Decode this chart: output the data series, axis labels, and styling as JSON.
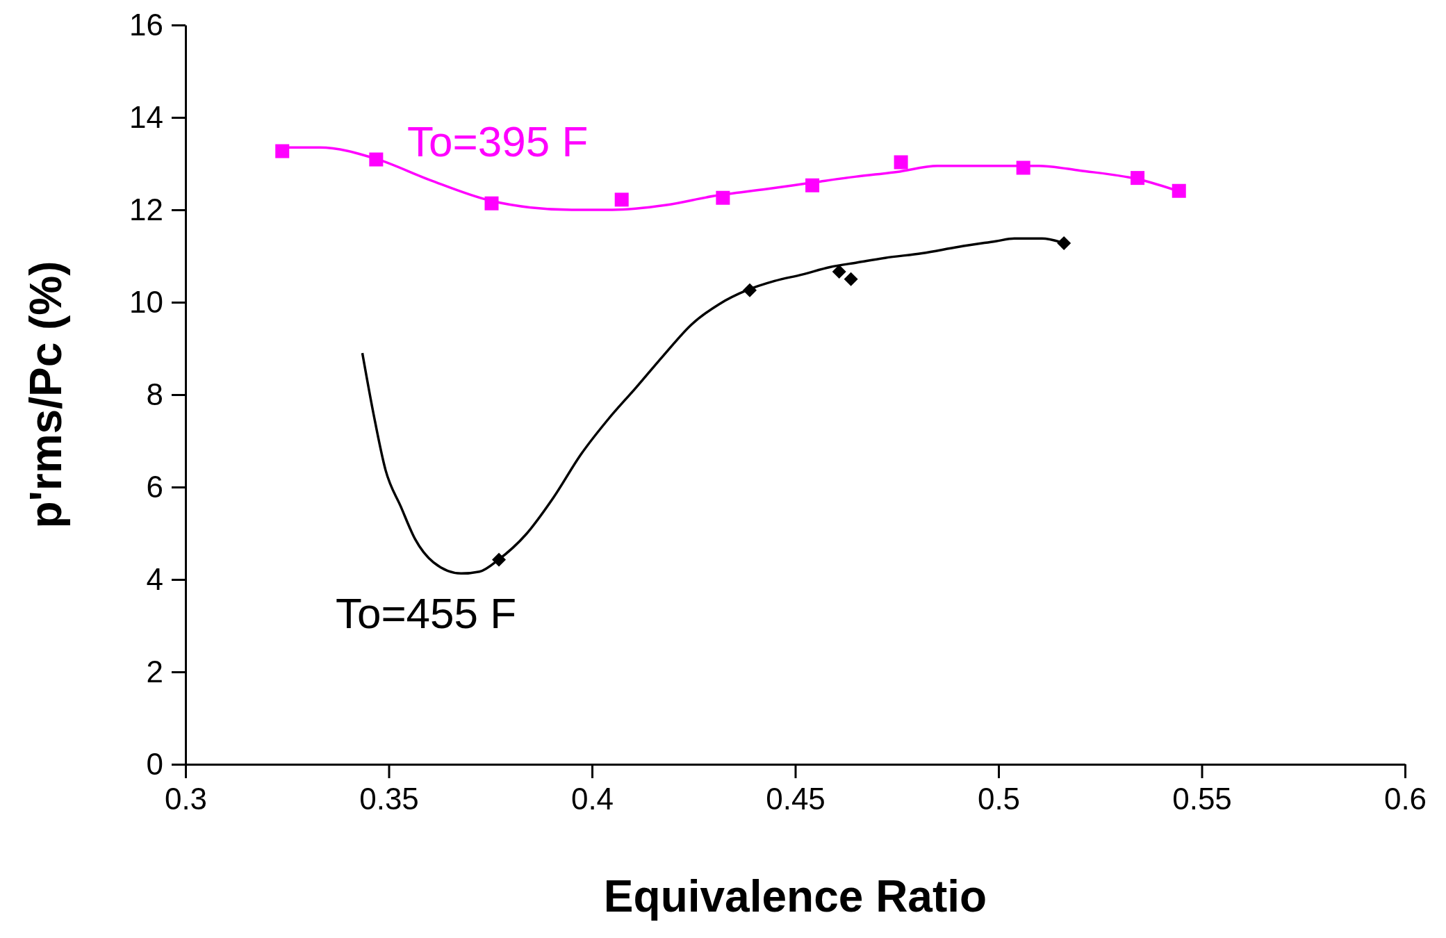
{
  "chart_data": {
    "type": "scatter",
    "xlabel": "Equivalence Ratio",
    "ylabel": "p'rms/Pc (%)",
    "xlim": [
      0.3,
      0.6
    ],
    "xticks": [
      0.3,
      0.35,
      0.4,
      0.45,
      0.5,
      0.55,
      0.6
    ],
    "ylim": [
      0,
      16
    ],
    "yticks": [
      0,
      2,
      4,
      6,
      8,
      10,
      12,
      14,
      16
    ],
    "series": [
      {
        "name": "To=395 F",
        "marker": "square",
        "color": "#ff00ff",
        "x": [
          0.3238,
          0.3469,
          0.3753,
          0.4073,
          0.4322,
          0.4542,
          0.476,
          0.5061,
          0.5342,
          0.5444
        ],
        "values": [
          13.27,
          13.09,
          12.14,
          12.22,
          12.26,
          12.53,
          13.03,
          12.91,
          12.69,
          12.41
        ]
      },
      {
        "name": "To=455 F",
        "marker": "diamond",
        "color": "#000000",
        "x": [
          0.3771,
          0.4388,
          0.4608,
          0.4637,
          0.5161
        ],
        "values": [
          4.43,
          10.26,
          10.66,
          10.5,
          11.28
        ]
      },
      {
        "type": "line",
        "marker": "none",
        "color": "#ff00ff",
        "x": [
          0.3238,
          0.333,
          0.347,
          0.36,
          0.375,
          0.385,
          0.395,
          0.405,
          0.418,
          0.43,
          0.443,
          0.455,
          0.465,
          0.475,
          0.485,
          0.51,
          0.52,
          0.535,
          0.5444
        ],
        "values": [
          13.35,
          13.35,
          13.1,
          12.65,
          12.2,
          12.05,
          12.0,
          12.0,
          12.1,
          12.3,
          12.45,
          12.6,
          12.72,
          12.82,
          12.95,
          12.95,
          12.85,
          12.65,
          12.4
        ]
      },
      {
        "type": "line",
        "marker": "none",
        "color": "#000000",
        "x": [
          0.3435,
          0.3463,
          0.3492,
          0.353,
          0.3565,
          0.361,
          0.3678,
          0.3723,
          0.377,
          0.3837,
          0.3905,
          0.3973,
          0.404,
          0.4109,
          0.4177,
          0.4245,
          0.4313,
          0.4381,
          0.4449,
          0.4517,
          0.4585,
          0.4653,
          0.4721,
          0.4812,
          0.4902,
          0.4993,
          0.5039,
          0.5107,
          0.5161
        ],
        "values": [
          8.9,
          7.56,
          6.37,
          5.57,
          4.87,
          4.37,
          4.13,
          4.17,
          4.43,
          4.97,
          5.77,
          6.71,
          7.47,
          8.16,
          8.86,
          9.52,
          9.96,
          10.26,
          10.46,
          10.6,
          10.76,
          10.86,
          10.96,
          11.06,
          11.2,
          11.32,
          11.38,
          11.38,
          11.28
        ]
      }
    ]
  }
}
